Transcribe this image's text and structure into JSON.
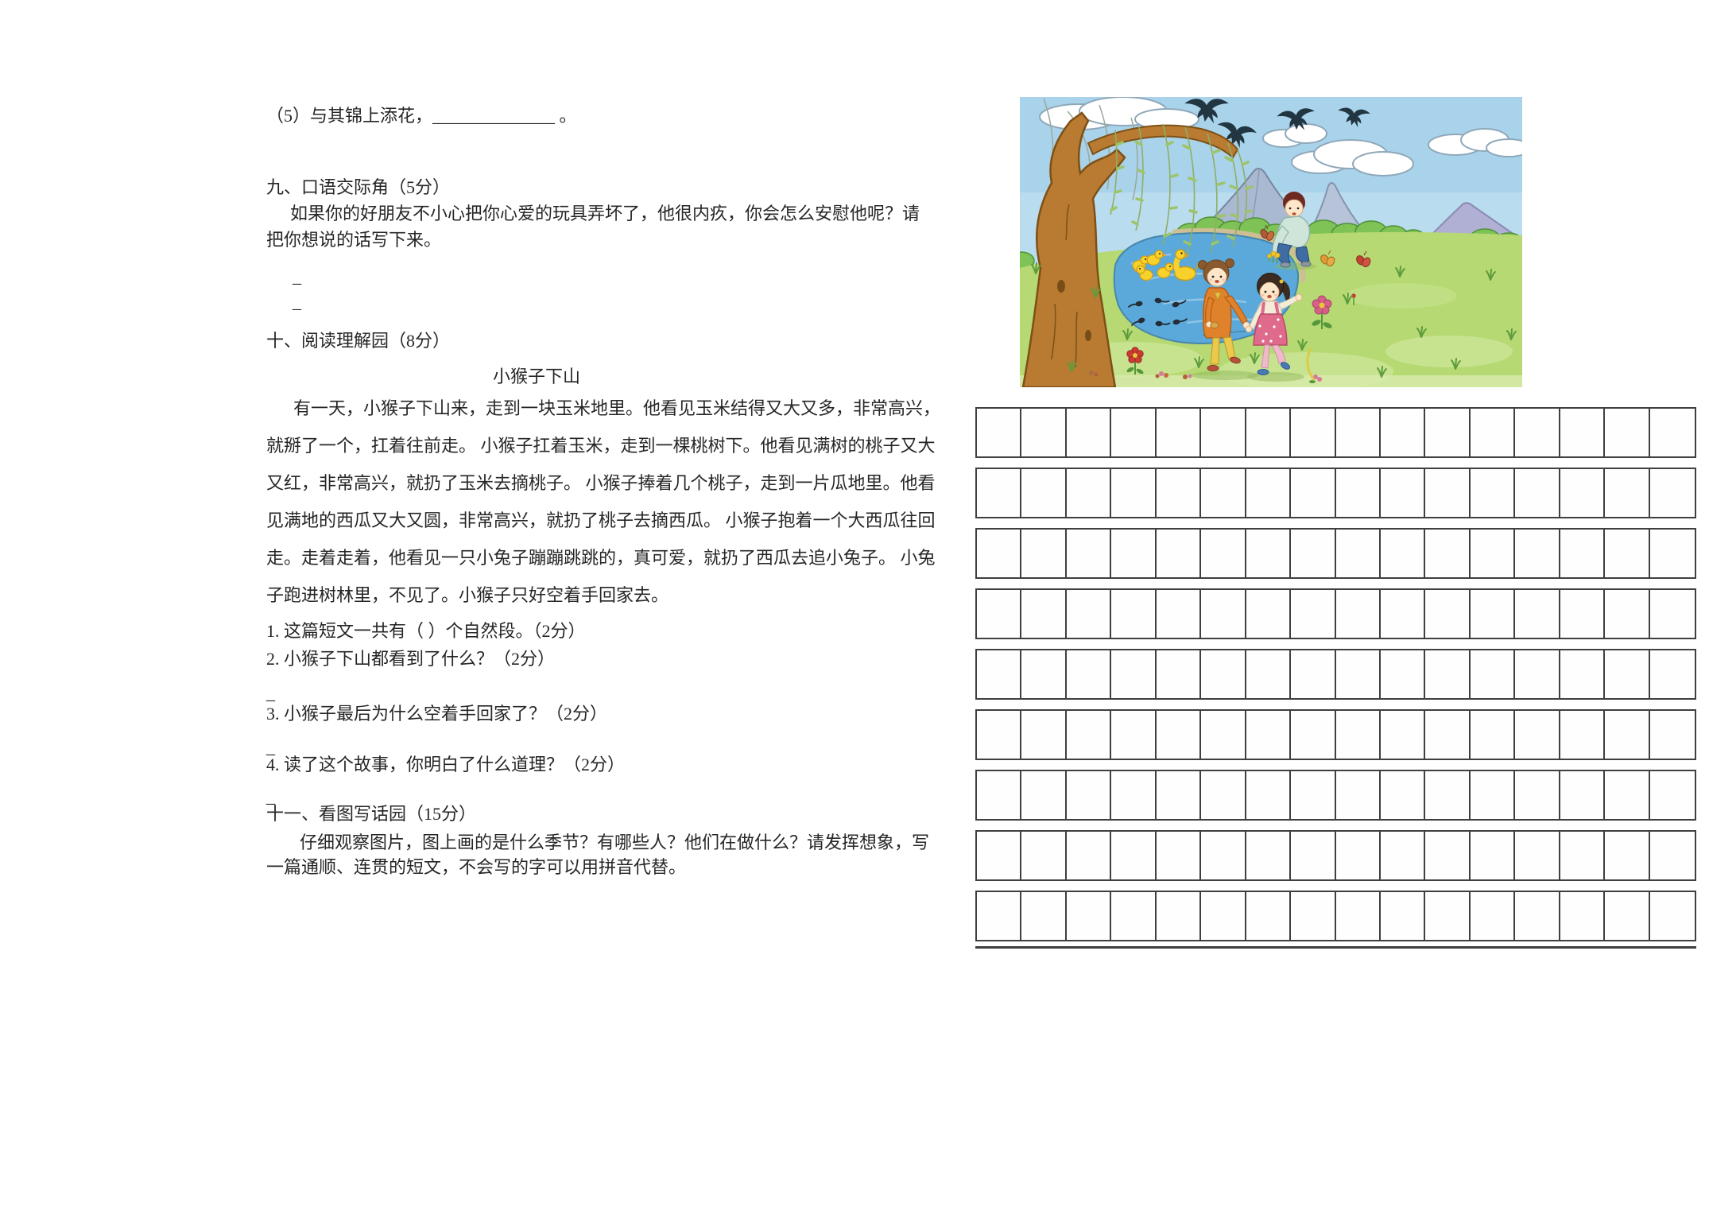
{
  "colors": {
    "page_background": "#ffffff",
    "text": "#262626",
    "grid_line": "#3f3f3f"
  },
  "left_column": {
    "item_5": "（5）与其锦上添花，______________ 。",
    "section_9": {
      "title": "九、口语交际角（5分）",
      "lines": [
        "如果你的好朋友不小心把你心爱的玩具弄坏了，他很内疚，你会怎么安慰他呢？请",
        "把你想说的话写下来。"
      ],
      "blanks": [
        "_",
        "_"
      ]
    },
    "section_10": {
      "title": "十、阅读理解园（8分）",
      "passage_title": "小猴子下山",
      "passage_lines": [
        "有一天，小猴子下山来，走到一块玉米地里。他看见玉米结得又大又多，非常高兴，",
        "就掰了一个，扛着往前走。 小猴子扛着玉米，走到一棵桃树下。他看见满树的桃子又大",
        "又红，非常高兴，就扔了玉米去摘桃子。 小猴子捧着几个桃子，走到一片瓜地里。他看",
        "见满地的西瓜又大又圆，非常高兴，就扔了桃子去摘西瓜。 小猴子抱着一个大西瓜往回",
        "走。走着走着，他看见一只小兔子蹦蹦跳跳的，真可爱，就扔了西瓜去追小兔子。 小兔",
        "子跑进树林里，不见了。小猴子只好空着手回家去。"
      ],
      "questions": [
        "1. 这篇短文一共有（  ）个自然段。（2分）",
        "2. 小猴子下山都看到了什么？（2分）",
        "3. 小猴子最后为什么空着手回家了？（2分）",
        "4. 读了这个故事，你明白了什么道理？（2分）"
      ],
      "blanks": [
        "_",
        "_",
        "_"
      ]
    },
    "section_11": {
      "title": "十一、看图写话园（15分）",
      "lines": [
        "仔细观察图片，图上画的是什么季节？有哪些人？他们在做什么？请发挥想象，写",
        "一篇通顺、连贯的短文，不会写的字可以用拼音代替。"
      ]
    }
  },
  "illustration": {
    "scene_elements": [
      "spring-sky",
      "clouds",
      "swallows",
      "mountains",
      "willow-tree",
      "pond",
      "ducklings",
      "tadpoles",
      "boy-picking-flowers",
      "two-girls-holding-hands",
      "butterflies",
      "flowers",
      "grass"
    ]
  },
  "writing_grid": {
    "rows": 9,
    "columns": 16
  }
}
